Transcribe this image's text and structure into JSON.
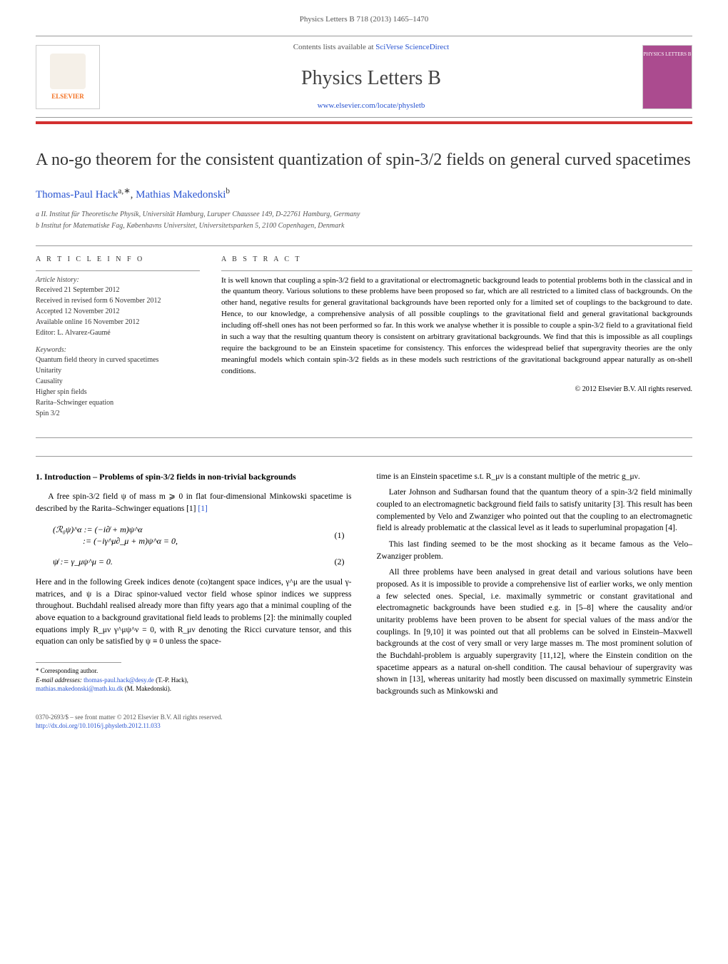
{
  "journal_header": {
    "top_line": "Physics Letters B 718 (2013) 1465–1470",
    "contents_line_prefix": "Contents lists available at ",
    "contents_link_text": "SciVerse ScienceDirect",
    "journal_name": "Physics Letters B",
    "journal_url_text": "www.elsevier.com/locate/physletb",
    "publisher_name": "ELSEVIER",
    "cover_label": "PHYSICS LETTERS B"
  },
  "title": "A no-go theorem for the consistent quantization of spin-3/2 fields on general curved spacetimes",
  "authors": {
    "author1": "Thomas-Paul Hack",
    "author1_marks": "a,∗",
    "author2": "Mathias Makedonski",
    "author2_marks": "b"
  },
  "affiliations": {
    "a": "a II. Institut für Theoretische Physik, Universität Hamburg, Luruper Chaussee 149, D-22761 Hamburg, Germany",
    "b": "b Institut for Matematiske Fag, Københavns Universitet, Universitetsparken 5, 2100 Copenhagen, Denmark"
  },
  "article_info": {
    "label": "A R T I C L E   I N F O",
    "history_label": "Article history:",
    "received": "Received 21 September 2012",
    "revised": "Received in revised form 6 November 2012",
    "accepted": "Accepted 12 November 2012",
    "available": "Available online 16 November 2012",
    "editor": "Editor: L. Alvarez-Gaumé",
    "keywords_label": "Keywords:",
    "kw1": "Quantum field theory in curved spacetimes",
    "kw2": "Unitarity",
    "kw3": "Causality",
    "kw4": "Higher spin fields",
    "kw5": "Rarita–Schwinger equation",
    "kw6": "Spin 3/2"
  },
  "abstract": {
    "label": "A B S T R A C T",
    "text": "It is well known that coupling a spin-3/2 field to a gravitational or electromagnetic background leads to potential problems both in the classical and in the quantum theory. Various solutions to these problems have been proposed so far, which are all restricted to a limited class of backgrounds. On the other hand, negative results for general gravitational backgrounds have been reported only for a limited set of couplings to the background to date. Hence, to our knowledge, a comprehensive analysis of all possible couplings to the gravitational field and general gravitational backgrounds including off-shell ones has not been performed so far. In this work we analyse whether it is possible to couple a spin-3/2 field to a gravitational field in such a way that the resulting quantum theory is consistent on arbitrary gravitational backgrounds. We find that this is impossible as all couplings require the background to be an Einstein spacetime for consistency. This enforces the widespread belief that supergravity theories are the only meaningful models which contain spin-3/2 fields as in these models such restrictions of the gravitational background appear naturally as on-shell conditions.",
    "copyright": "© 2012 Elsevier B.V. All rights reserved."
  },
  "section1": {
    "title": "1. Introduction – Problems of spin-3/2 fields in non-trivial backgrounds"
  },
  "body": {
    "p1": "A free spin-3/2 field ψ of mass m ⩾ 0 in flat four-dimensional Minkowski spacetime is described by the Rarita–Schwinger equations [1]",
    "eq1": "(ℛ₀ψ)^α := (−i∂̸ + m)ψ^α",
    "eq1b": ":= (−iγ^μ∂_μ + m)ψ^α = 0,",
    "eq1num": "(1)",
    "eq2": "ψ̸ := γ_μψ^μ = 0.",
    "eq2num": "(2)",
    "p2": "Here and in the following Greek indices denote (co)tangent space indices, γ^μ are the usual γ-matrices, and ψ is a Dirac spinor-valued vector field whose spinor indices we suppress throughout. Buchdahl realised already more than fifty years ago that a minimal coupling of the above equation to a background gravitational field leads to problems [2]: the minimally coupled equations imply R_μν γ^μψ^ν = 0, with R_μν denoting the Ricci curvature tensor, and this equation can only be satisfied by ψ ≡ 0 unless the space-",
    "p3": "time is an Einstein spacetime s.t. R_μν is a constant multiple of the metric g_μν.",
    "p4": "Later Johnson and Sudharsan found that the quantum theory of a spin-3/2 field minimally coupled to an electromagnetic background field fails to satisfy unitarity [3]. This result has been complemented by Velo and Zwanziger who pointed out that the coupling to an electromagnetic field is already problematic at the classical level as it leads to superluminal propagation [4].",
    "p5": "This last finding seemed to be the most shocking as it became famous as the Velo–Zwanziger problem.",
    "p6": "All three problems have been analysed in great detail and various solutions have been proposed. As it is impossible to provide a comprehensive list of earlier works, we only mention a few selected ones. Special, i.e. maximally symmetric or constant gravitational and electromagnetic backgrounds have been studied e.g. in [5–8] where the causality and/or unitarity problems have been proven to be absent for special values of the mass and/or the couplings. In [9,10] it was pointed out that all problems can be solved in Einstein–Maxwell backgrounds at the cost of very small or very large masses m. The most prominent solution of the Buchdahl-problem is arguably supergravity [11,12], where the Einstein condition on the spacetime appears as a natural on-shell condition. The causal behaviour of supergravity was shown in [13], whereas unitarity had mostly been discussed on maximally symmetric Einstein backgrounds such as Minkowski and"
  },
  "footnotes": {
    "corr_label": "* Corresponding author.",
    "email_label": "E-mail addresses: ",
    "email1": "thomas-paul.hack@desy.de",
    "email1_suffix": " (T.-P. Hack),",
    "email2": "mathias.makedonski@math.ku.dk",
    "email2_suffix": " (M. Makedonski)."
  },
  "bottom": {
    "issn_line": "0370-2693/$ – see front matter © 2012 Elsevier B.V. All rights reserved.",
    "doi": "http://dx.doi.org/10.1016/j.physletb.2012.11.033"
  },
  "colors": {
    "link_color": "#2954d1",
    "red_bar": "#d32f2f",
    "elsevier_orange": "#f37021",
    "cover_purple": "#ab4b8f"
  }
}
